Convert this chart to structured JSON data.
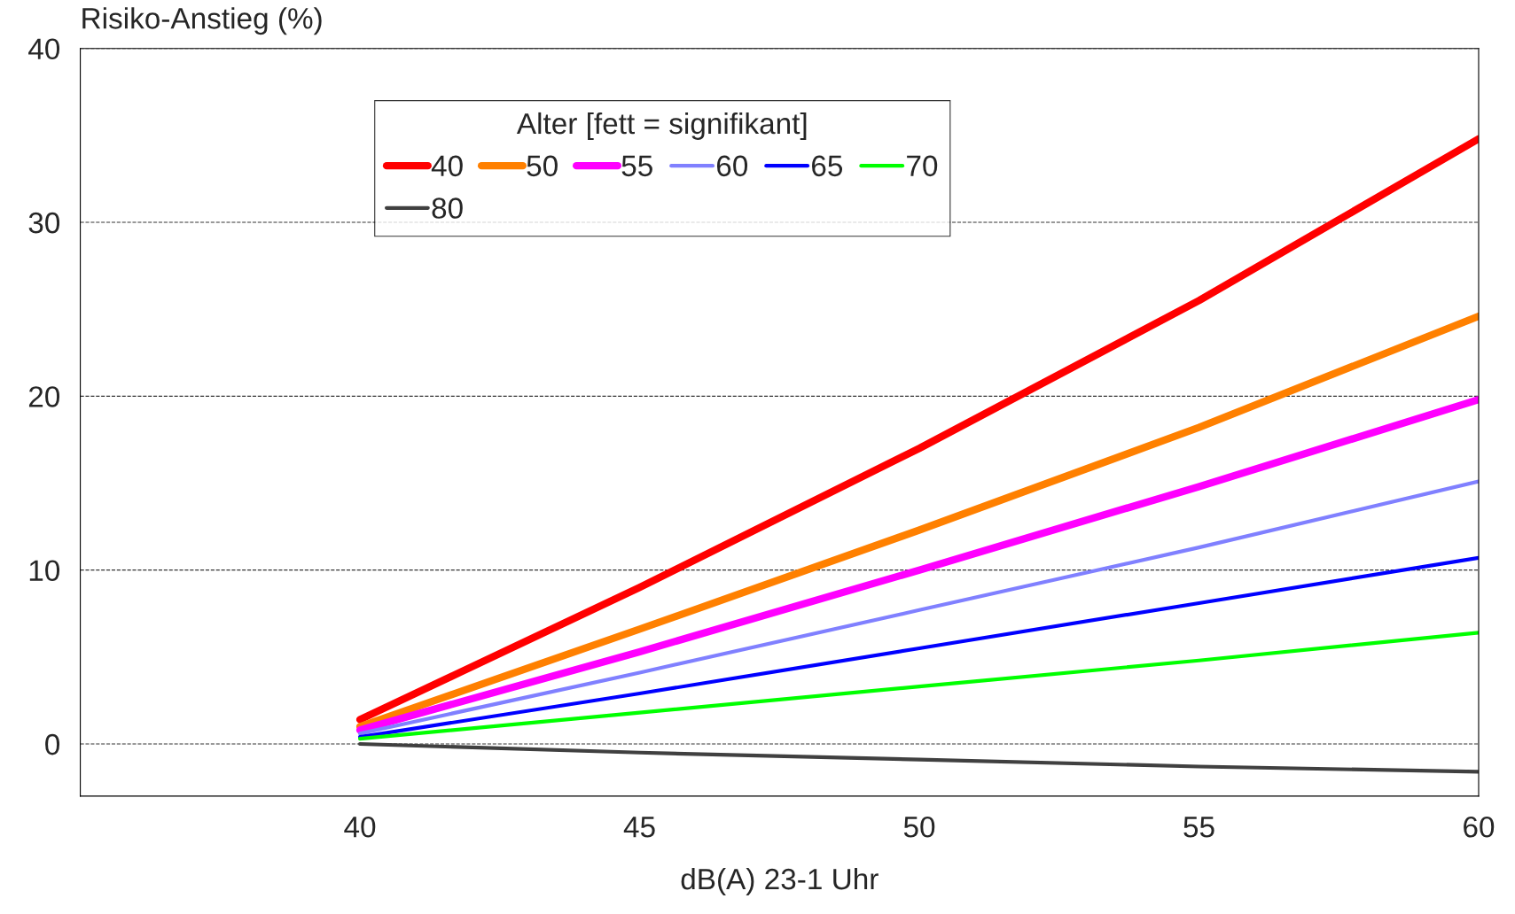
{
  "chart_data": {
    "type": "line",
    "ylabel": "Risiko-Anstieg (%)",
    "xlabel": "dB(A) 23-1 Uhr",
    "legend_title": "Alter [fett = signifikant]",
    "x": [
      40,
      45,
      50,
      55,
      60
    ],
    "xlim": [
      35,
      60
    ],
    "xticks": [
      40,
      45,
      50,
      55,
      60
    ],
    "ylim": [
      -3,
      40
    ],
    "yticks": [
      0,
      10,
      20,
      30,
      40
    ],
    "grid": "y",
    "legend": "top",
    "line_style": "solid",
    "marker": "none",
    "series": [
      {
        "name": "40",
        "color": "#ff0000",
        "values": [
          1.4,
          9.0,
          17.0,
          25.5,
          34.8
        ]
      },
      {
        "name": "50",
        "color": "#ff8000",
        "values": [
          1.0,
          6.6,
          12.3,
          18.2,
          24.6
        ]
      },
      {
        "name": "55",
        "color": "#ff00ff",
        "values": [
          0.8,
          5.3,
          10.0,
          14.8,
          19.8
        ]
      },
      {
        "name": "60",
        "color": "#8080ff",
        "values": [
          0.6,
          4.1,
          7.7,
          11.3,
          15.1
        ]
      },
      {
        "name": "65",
        "color": "#0000ff",
        "values": [
          0.4,
          2.9,
          5.5,
          8.1,
          10.7
        ]
      },
      {
        "name": "70",
        "color": "#00ff00",
        "values": [
          0.3,
          1.8,
          3.3,
          4.8,
          6.4
        ]
      },
      {
        "name": "80",
        "color": "#404040",
        "values": [
          0.0,
          -0.5,
          -0.9,
          -1.3,
          -1.6
        ]
      }
    ]
  }
}
